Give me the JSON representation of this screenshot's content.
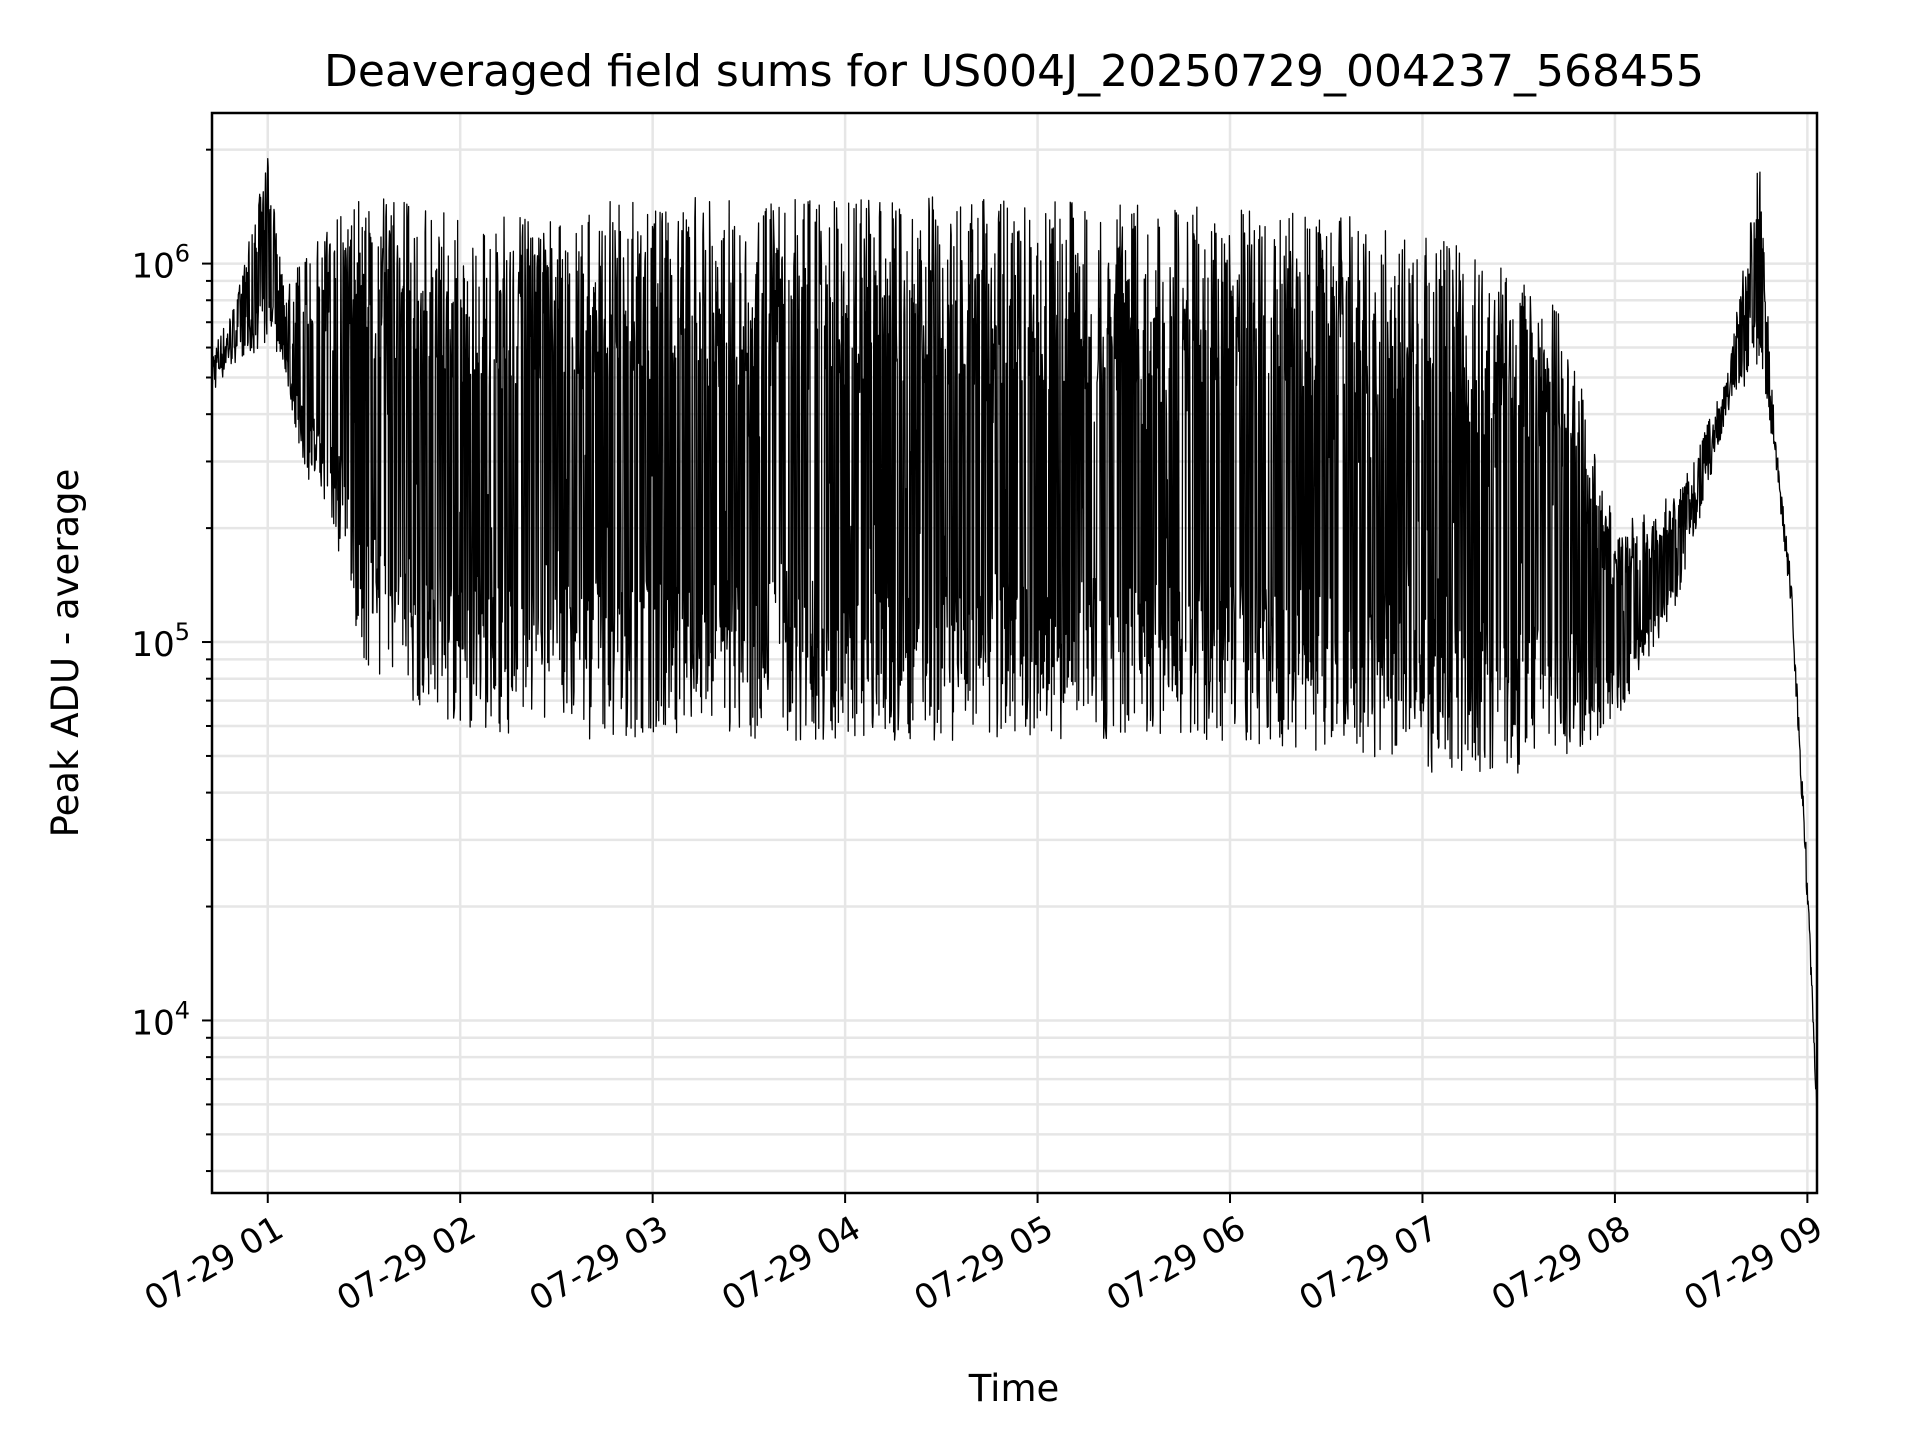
{
  "chart_data": {
    "type": "line",
    "title": "Deaveraged field sums for US004J_20250729_004237_568455",
    "xlabel": "Time",
    "ylabel": "Peak ADU - average",
    "yscale": "log",
    "grid": true,
    "line_color": "#000000",
    "x_range": [
      "2025-07-29 00:42:37",
      "2025-07-29 09:03:00"
    ],
    "ylim": [
      3500,
      2500000
    ],
    "x_ticks": [
      {
        "label": "07-29 01",
        "t": "2025-07-29 01:00"
      },
      {
        "label": "07-29 02",
        "t": "2025-07-29 02:00"
      },
      {
        "label": "07-29 03",
        "t": "2025-07-29 03:00"
      },
      {
        "label": "07-29 04",
        "t": "2025-07-29 04:00"
      },
      {
        "label": "07-29 05",
        "t": "2025-07-29 05:00"
      },
      {
        "label": "07-29 06",
        "t": "2025-07-29 06:00"
      },
      {
        "label": "07-29 07",
        "t": "2025-07-29 07:00"
      },
      {
        "label": "07-29 08",
        "t": "2025-07-29 08:00"
      },
      {
        "label": "07-29 09",
        "t": "2025-07-29 09:00"
      }
    ],
    "y_ticks": [
      {
        "value": 10000,
        "base": "10",
        "exp": "4"
      },
      {
        "value": 100000,
        "base": "10",
        "exp": "5"
      },
      {
        "value": 1000000,
        "base": "10",
        "exp": "6"
      }
    ],
    "series": [
      {
        "points": [
          {
            "t": "2025-07-29 00:42:37",
            "floor": 450000,
            "peak": 600000
          },
          {
            "t": "2025-07-29 00:50",
            "floor": 550000,
            "peak": 800000
          },
          {
            "t": "2025-07-29 01:00",
            "floor": 600000,
            "peak": 1900000
          },
          {
            "t": "2025-07-29 01:05",
            "floor": 550000,
            "peak": 900000
          },
          {
            "t": "2025-07-29 01:10",
            "floor": 300000,
            "peak": 1000000
          },
          {
            "t": "2025-07-29 01:20",
            "floor": 200000,
            "peak": 1300000
          },
          {
            "t": "2025-07-29 01:30",
            "floor": 90000,
            "peak": 1500000
          },
          {
            "t": "2025-07-29 01:40",
            "floor": 70000,
            "peak": 1500000
          },
          {
            "t": "2025-07-29 02:00",
            "floor": 60000,
            "peak": 1400000
          },
          {
            "t": "2025-07-29 02:30",
            "floor": 55000,
            "peak": 1300000
          },
          {
            "t": "2025-07-29 02:50",
            "floor": 55000,
            "peak": 1500000
          },
          {
            "t": "2025-07-29 03:30",
            "floor": 55000,
            "peak": 1500000
          },
          {
            "t": "2025-07-29 04:00",
            "floor": 55000,
            "peak": 1500000
          },
          {
            "t": "2025-07-29 05:00",
            "floor": 55000,
            "peak": 1500000
          },
          {
            "t": "2025-07-29 06:00",
            "floor": 55000,
            "peak": 1400000
          },
          {
            "t": "2025-07-29 06:40",
            "floor": 50000,
            "peak": 1400000
          },
          {
            "t": "2025-07-29 07:00",
            "floor": 45000,
            "peak": 1200000
          },
          {
            "t": "2025-07-29 07:30",
            "floor": 45000,
            "peak": 1000000
          },
          {
            "t": "2025-07-29 07:45",
            "floor": 50000,
            "peak": 700000
          },
          {
            "t": "2025-07-29 08:00",
            "floor": 60000,
            "peak": 200000
          },
          {
            "t": "2025-07-29 08:20",
            "floor": 130000,
            "peak": 250000
          },
          {
            "t": "2025-07-29 08:35",
            "floor": 400000,
            "peak": 500000
          },
          {
            "t": "2025-07-29 08:45",
            "floor": 550000,
            "peak": 1900000
          },
          {
            "t": "2025-07-29 08:50",
            "floor": 300000,
            "peak": 350000
          },
          {
            "t": "2025-07-29 08:55",
            "floor": 120000,
            "peak": 150000
          },
          {
            "t": "2025-07-29 09:00",
            "floor": 20000,
            "peak": 25000
          },
          {
            "t": "2025-07-29 09:03",
            "floor": 5500,
            "peak": 6000
          }
        ]
      }
    ]
  }
}
